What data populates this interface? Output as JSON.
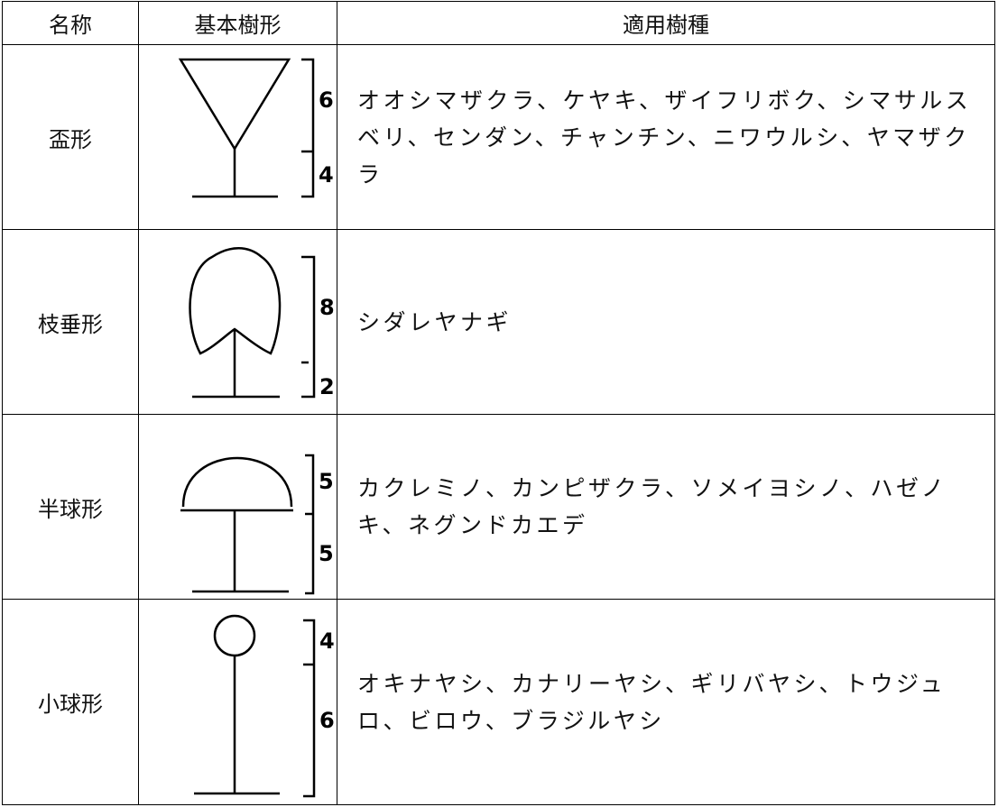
{
  "table": {
    "header": [
      "名称",
      "基本樹形",
      "適用樹種"
    ],
    "rows": [
      {
        "name": "盃形",
        "ratios": [
          6,
          4
        ],
        "species": "オオシマザクラ、ケヤキ、ザイフリボク、シマサルスベリ、センダン、チャンチン、ニワウルシ、ヤマザクラ"
      },
      {
        "name": "枝垂形",
        "ratios": [
          8,
          2
        ],
        "species": "シダレヤナギ"
      },
      {
        "name": "半球形",
        "ratios": [
          5,
          5
        ],
        "species": "カクレミノ、カンピザクラ、ソメイヨシノ、ハゼノキ、ネグンドカエデ"
      },
      {
        "name": "小球形",
        "ratios": [
          4,
          6
        ],
        "species": "オキナヤシ、カナリーヤシ、ギリバヤシ、トウジュロ、ビロウ、ブラジルヤシ"
      }
    ]
  }
}
